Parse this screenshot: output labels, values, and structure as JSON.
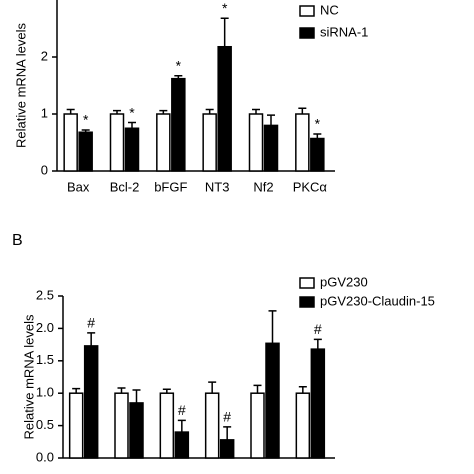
{
  "chart_data": [
    {
      "type": "bar",
      "y_label": "Relative mRNA levels",
      "categories": [
        "Bax",
        "Bcl-2",
        "bFGF",
        "NT3",
        "Nf2",
        "PKCα"
      ],
      "ylim": [
        0,
        3
      ],
      "yticks": [
        0,
        1,
        2
      ],
      "series": [
        {
          "name": "NC",
          "color": "#ffffff",
          "values": [
            1,
            1,
            1,
            1,
            1,
            1
          ],
          "errors": [
            0.08,
            0.06,
            0.06,
            0.08,
            0.08,
            0.1
          ],
          "markers": [
            null,
            null,
            null,
            null,
            null,
            null
          ]
        },
        {
          "name": "siRNA-1",
          "color": "#000000",
          "values": [
            0.68,
            0.75,
            1.62,
            2.18,
            0.8,
            0.57
          ],
          "errors": [
            0.04,
            0.1,
            0.05,
            0.5,
            0.18,
            0.08
          ],
          "markers": [
            "*",
            "*",
            "*",
            "*",
            null,
            "*"
          ]
        }
      ]
    },
    {
      "type": "bar",
      "panel_label": "B",
      "y_label": "Relative mRNA levels",
      "categories": [
        null,
        null,
        null,
        null,
        null,
        null
      ],
      "ylim": [
        0,
        2.5
      ],
      "yticks": [
        {
          "value": 0,
          "label": "0.0"
        },
        0.5,
        {
          "value": 1,
          "label": "1.0"
        },
        1.5,
        {
          "value": 2,
          "label": "2.0"
        },
        2.5
      ],
      "series": [
        {
          "name": "pGV230",
          "color": "#ffffff",
          "values": [
            1,
            1,
            1,
            1,
            1,
            1
          ],
          "errors": [
            0.07,
            0.08,
            0.06,
            0.17,
            0.12,
            0.1
          ],
          "markers": [
            null,
            null,
            null,
            null,
            null,
            null
          ]
        },
        {
          "name": "pGV230-Claudin-15",
          "color": "#000000",
          "values": [
            1.73,
            0.85,
            0.4,
            0.28,
            1.77,
            1.68
          ],
          "errors": [
            0.2,
            0.2,
            0.18,
            0.2,
            0.5,
            0.15
          ],
          "markers": [
            "#",
            null,
            "#",
            "#",
            null,
            "#"
          ]
        }
      ]
    }
  ]
}
